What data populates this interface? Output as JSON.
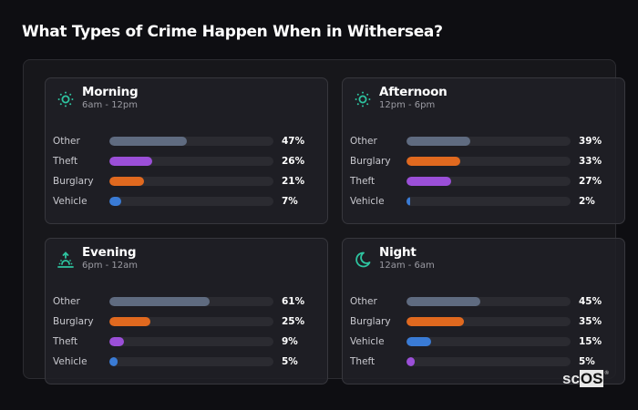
{
  "header": {
    "title": "What Types of Crime Happen When in Withersea?"
  },
  "logo": {
    "text_a": "sc",
    "text_b": "OS",
    "reg": "®"
  },
  "colors": {
    "Other": "#5f6b80",
    "Theft": "#9b4fd8",
    "Burglary": "#e0691f",
    "Vehicle": "#3a7bd5",
    "accent": "#2ec4a0"
  },
  "cards": [
    {
      "title": "Morning",
      "subtitle": "6am - 12pm",
      "icon": "sun-icon",
      "rows": [
        {
          "label": "Other",
          "pct": "47%",
          "value": 47
        },
        {
          "label": "Theft",
          "pct": "26%",
          "value": 26
        },
        {
          "label": "Burglary",
          "pct": "21%",
          "value": 21
        },
        {
          "label": "Vehicle",
          "pct": "7%",
          "value": 7
        }
      ]
    },
    {
      "title": "Afternoon",
      "subtitle": "12pm - 6pm",
      "icon": "sun-icon",
      "rows": [
        {
          "label": "Other",
          "pct": "39%",
          "value": 39
        },
        {
          "label": "Burglary",
          "pct": "33%",
          "value": 33
        },
        {
          "label": "Theft",
          "pct": "27%",
          "value": 27
        },
        {
          "label": "Vehicle",
          "pct": "2%",
          "value": 2
        }
      ]
    },
    {
      "title": "Evening",
      "subtitle": "6pm - 12am",
      "icon": "sunset-icon",
      "rows": [
        {
          "label": "Other",
          "pct": "61%",
          "value": 61
        },
        {
          "label": "Burglary",
          "pct": "25%",
          "value": 25
        },
        {
          "label": "Theft",
          "pct": "9%",
          "value": 9
        },
        {
          "label": "Vehicle",
          "pct": "5%",
          "value": 5
        }
      ]
    },
    {
      "title": "Night",
      "subtitle": "12am - 6am",
      "icon": "moon-icon",
      "rows": [
        {
          "label": "Other",
          "pct": "45%",
          "value": 45
        },
        {
          "label": "Burglary",
          "pct": "35%",
          "value": 35
        },
        {
          "label": "Vehicle",
          "pct": "15%",
          "value": 15
        },
        {
          "label": "Theft",
          "pct": "5%",
          "value": 5
        }
      ]
    }
  ],
  "chart_data": [
    {
      "type": "bar",
      "title": "Morning",
      "subtitle": "6am - 12pm",
      "orientation": "horizontal",
      "categories": [
        "Other",
        "Theft",
        "Burglary",
        "Vehicle"
      ],
      "values": [
        47,
        26,
        21,
        7
      ],
      "xlim": [
        0,
        100
      ],
      "unit": "%"
    },
    {
      "type": "bar",
      "title": "Afternoon",
      "subtitle": "12pm - 6pm",
      "orientation": "horizontal",
      "categories": [
        "Other",
        "Burglary",
        "Theft",
        "Vehicle"
      ],
      "values": [
        39,
        33,
        27,
        2
      ],
      "xlim": [
        0,
        100
      ],
      "unit": "%"
    },
    {
      "type": "bar",
      "title": "Evening",
      "subtitle": "6pm - 12am",
      "orientation": "horizontal",
      "categories": [
        "Other",
        "Burglary",
        "Theft",
        "Vehicle"
      ],
      "values": [
        61,
        25,
        9,
        5
      ],
      "xlim": [
        0,
        100
      ],
      "unit": "%"
    },
    {
      "type": "bar",
      "title": "Night",
      "subtitle": "12am - 6am",
      "orientation": "horizontal",
      "categories": [
        "Other",
        "Burglary",
        "Vehicle",
        "Theft"
      ],
      "values": [
        45,
        35,
        15,
        5
      ],
      "xlim": [
        0,
        100
      ],
      "unit": "%"
    }
  ]
}
